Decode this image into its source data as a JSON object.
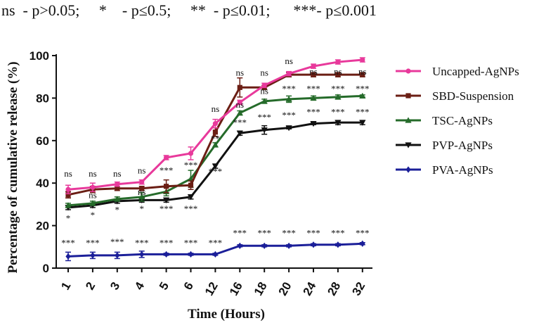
{
  "significance_legend": "ns  - p>0.05;     *    - p≤0.5;     **  - p≤0.01;      ***- p≤0.001",
  "chart_data": {
    "type": "line",
    "title": "",
    "xlabel": "Time (Hours)",
    "ylabel": "Percentage of cumulative release (%)",
    "ylim": [
      0,
      100
    ],
    "yticks": [
      "0",
      "20",
      "40",
      "60",
      "80",
      "100"
    ],
    "categories": [
      "1",
      "2",
      "3",
      "4",
      "5",
      "6",
      "12",
      "16",
      "18",
      "20",
      "24",
      "28",
      "32"
    ],
    "series": [
      {
        "name": "Uncapped-AgNPs",
        "color": "#e8399b",
        "marker": "circle",
        "values": [
          37,
          38,
          39.5,
          40.5,
          52,
          54,
          68,
          78,
          86,
          91.5,
          95,
          97,
          98
        ],
        "errors": [
          2,
          2,
          1,
          1,
          1,
          3,
          2,
          1,
          1,
          1,
          1,
          1,
          1
        ]
      },
      {
        "name": "SBD-Suspension",
        "color": "#6b1e14",
        "marker": "square",
        "values": [
          34.5,
          37,
          37.5,
          37.5,
          38.5,
          39,
          64,
          85,
          85,
          91,
          91,
          91,
          91
        ],
        "errors": [
          1.5,
          1.5,
          1,
          1,
          3,
          2,
          2,
          4.5,
          1,
          1,
          1,
          1,
          1
        ]
      },
      {
        "name": "TSC-AgNPs",
        "color": "#256b2a",
        "marker": "triangle-up",
        "values": [
          29.5,
          30.5,
          32.5,
          33.5,
          36,
          42,
          58,
          73,
          78.5,
          79.5,
          80,
          80.5,
          81
        ],
        "errors": [
          1,
          1,
          1,
          2,
          2,
          4,
          1,
          1,
          1,
          1.5,
          1,
          1,
          0.5
        ]
      },
      {
        "name": "PVP-AgNPs",
        "color": "#111111",
        "marker": "triangle-down",
        "values": [
          28.5,
          29.5,
          31.5,
          32,
          32,
          33.5,
          48,
          63.5,
          65,
          66,
          68,
          68.5,
          68.5
        ],
        "errors": [
          1,
          1,
          1,
          1,
          1,
          1,
          1,
          1,
          2,
          0.5,
          0.5,
          1,
          1
        ]
      },
      {
        "name": "PVA-AgNPs",
        "color": "#1b1f99",
        "marker": "diamond",
        "values": [
          5.5,
          6,
          6,
          6.5,
          6.5,
          6.5,
          6.5,
          10.5,
          10.5,
          10.5,
          11,
          11,
          11.5
        ],
        "errors": [
          2,
          1.5,
          1.5,
          1.5,
          0.5,
          0.5,
          0.5,
          0.5,
          0.5,
          0.5,
          0.5,
          0.5,
          0.5
        ]
      }
    ],
    "annotations": [
      {
        "text": "ns",
        "category": "1",
        "value": 43
      },
      {
        "text": "ns",
        "category": "2",
        "value": 43
      },
      {
        "text": "ns",
        "category": "3",
        "value": 43
      },
      {
        "text": "ns",
        "category": "4",
        "value": 44.5
      },
      {
        "text": "***",
        "category": "5",
        "value": 44.5
      },
      {
        "text": "***",
        "category": "6",
        "value": 47
      },
      {
        "text": "ns",
        "category": "12",
        "value": 73.5
      },
      {
        "text": "ns",
        "category": "16",
        "value": 90.5
      },
      {
        "text": "ns",
        "category": "18",
        "value": 90.5
      },
      {
        "text": "ns",
        "category": "20",
        "value": 96
      },
      {
        "text": "ns",
        "category": "24",
        "value": 91
      },
      {
        "text": "ns",
        "category": "28",
        "value": 91
      },
      {
        "text": "ns",
        "category": "32",
        "value": 91
      },
      {
        "text": "ns",
        "category": "2",
        "value": 33
      },
      {
        "text": "ns",
        "category": "4",
        "value": 34.5
      },
      {
        "text": "**",
        "category": "12",
        "value": 59.5
      },
      {
        "text": "ns",
        "category": "16",
        "value": 75.5
      },
      {
        "text": "ns",
        "category": "18",
        "value": 82
      },
      {
        "text": "***",
        "category": "20",
        "value": 83
      },
      {
        "text": "***",
        "category": "24",
        "value": 83
      },
      {
        "text": "***",
        "category": "28",
        "value": 83
      },
      {
        "text": "***",
        "category": "32",
        "value": 83
      },
      {
        "text": "*",
        "category": "1",
        "value": 22
      },
      {
        "text": "*",
        "category": "2",
        "value": 23.5
      },
      {
        "text": "*",
        "category": "3",
        "value": 26
      },
      {
        "text": "*",
        "category": "4",
        "value": 26.5
      },
      {
        "text": "***",
        "category": "5",
        "value": 26.5
      },
      {
        "text": "***",
        "category": "6",
        "value": 26.5
      },
      {
        "text": "***",
        "category": "12",
        "value": 44
      },
      {
        "text": "***",
        "category": "16",
        "value": 67
      },
      {
        "text": "***",
        "category": "18",
        "value": 69.5
      },
      {
        "text": "***",
        "category": "20",
        "value": 70.5
      },
      {
        "text": "***",
        "category": "24",
        "value": 72
      },
      {
        "text": "***",
        "category": "28",
        "value": 72
      },
      {
        "text": "***",
        "category": "32",
        "value": 72
      },
      {
        "text": "***",
        "category": "1",
        "value": 10.5
      },
      {
        "text": "***",
        "category": "2",
        "value": 10.5
      },
      {
        "text": "***",
        "category": "3",
        "value": 11
      },
      {
        "text": "***",
        "category": "4",
        "value": 10.5
      },
      {
        "text": "***",
        "category": "5",
        "value": 10.5
      },
      {
        "text": "***",
        "category": "6",
        "value": 10.5
      },
      {
        "text": "***",
        "category": "12",
        "value": 10.5
      },
      {
        "text": "***",
        "category": "16",
        "value": 15
      },
      {
        "text": "***",
        "category": "18",
        "value": 15
      },
      {
        "text": "***",
        "category": "20",
        "value": 15
      },
      {
        "text": "***",
        "category": "24",
        "value": 15
      },
      {
        "text": "***",
        "category": "28",
        "value": 15
      },
      {
        "text": "***",
        "category": "32",
        "value": 15
      }
    ],
    "legend_position": "right"
  }
}
